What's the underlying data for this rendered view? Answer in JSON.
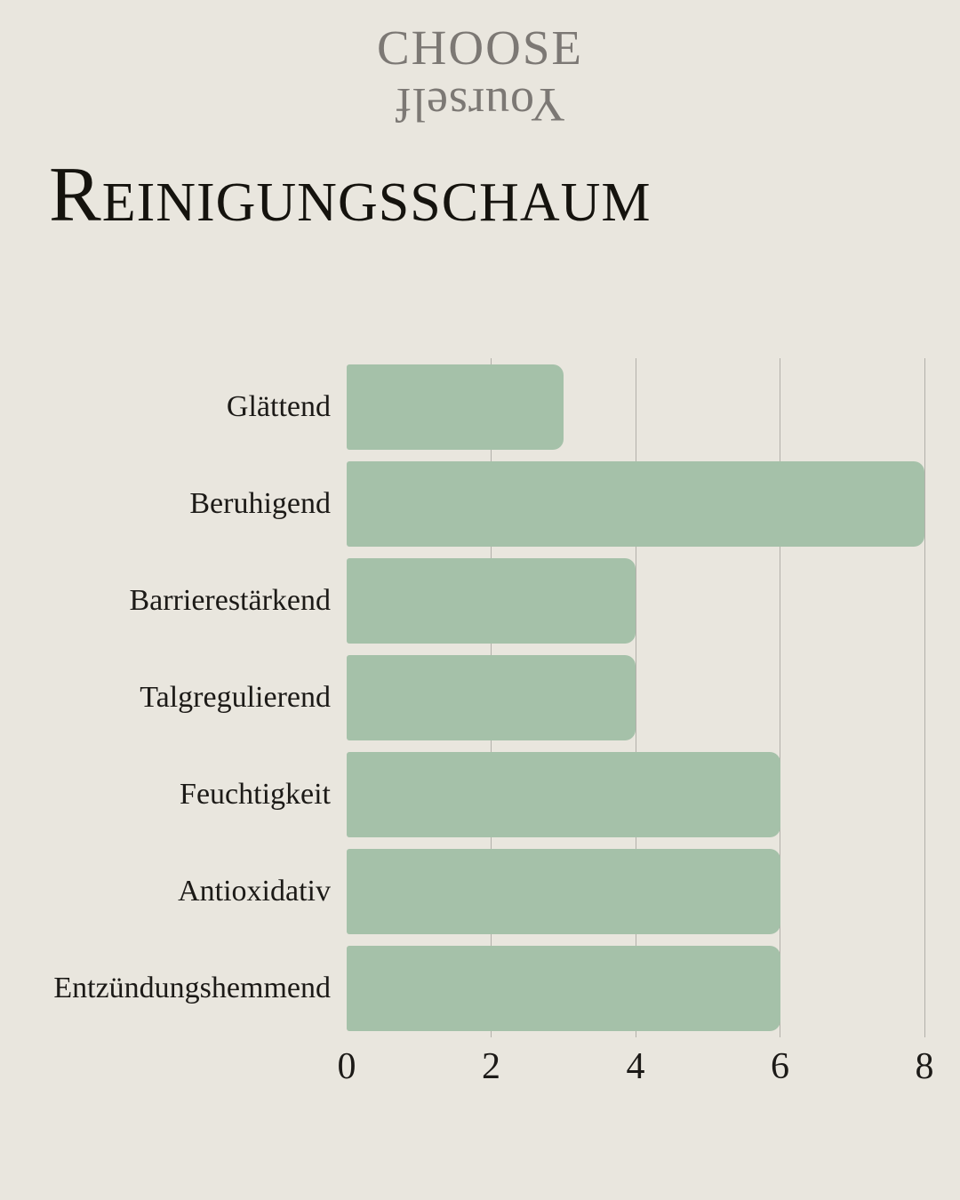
{
  "logo": {
    "line1": "CHOOSE",
    "line2": "Yourself"
  },
  "colors": {
    "background": "#e9e6de",
    "bar": "#a5c1a9",
    "gridline": "#8e8c85",
    "title_text": "#15130e",
    "logo_text": "#7c7874",
    "label_text": "#1c1a17"
  },
  "chart_data": {
    "type": "bar",
    "orientation": "horizontal",
    "title": "Reinigungsschaum",
    "categories": [
      "Glättend",
      "Beruhigend",
      "Barrierestärkend",
      "Talgregulierend",
      "Feuchtigkeit",
      "Antioxidativ",
      "Entzündungshemmend"
    ],
    "values": [
      3,
      8,
      4,
      4,
      6,
      6,
      6
    ],
    "xlim": [
      0,
      8
    ],
    "x_ticks": [
      0,
      2,
      4,
      6,
      8
    ],
    "grid": true,
    "legend": false,
    "xlabel": "",
    "ylabel": ""
  }
}
